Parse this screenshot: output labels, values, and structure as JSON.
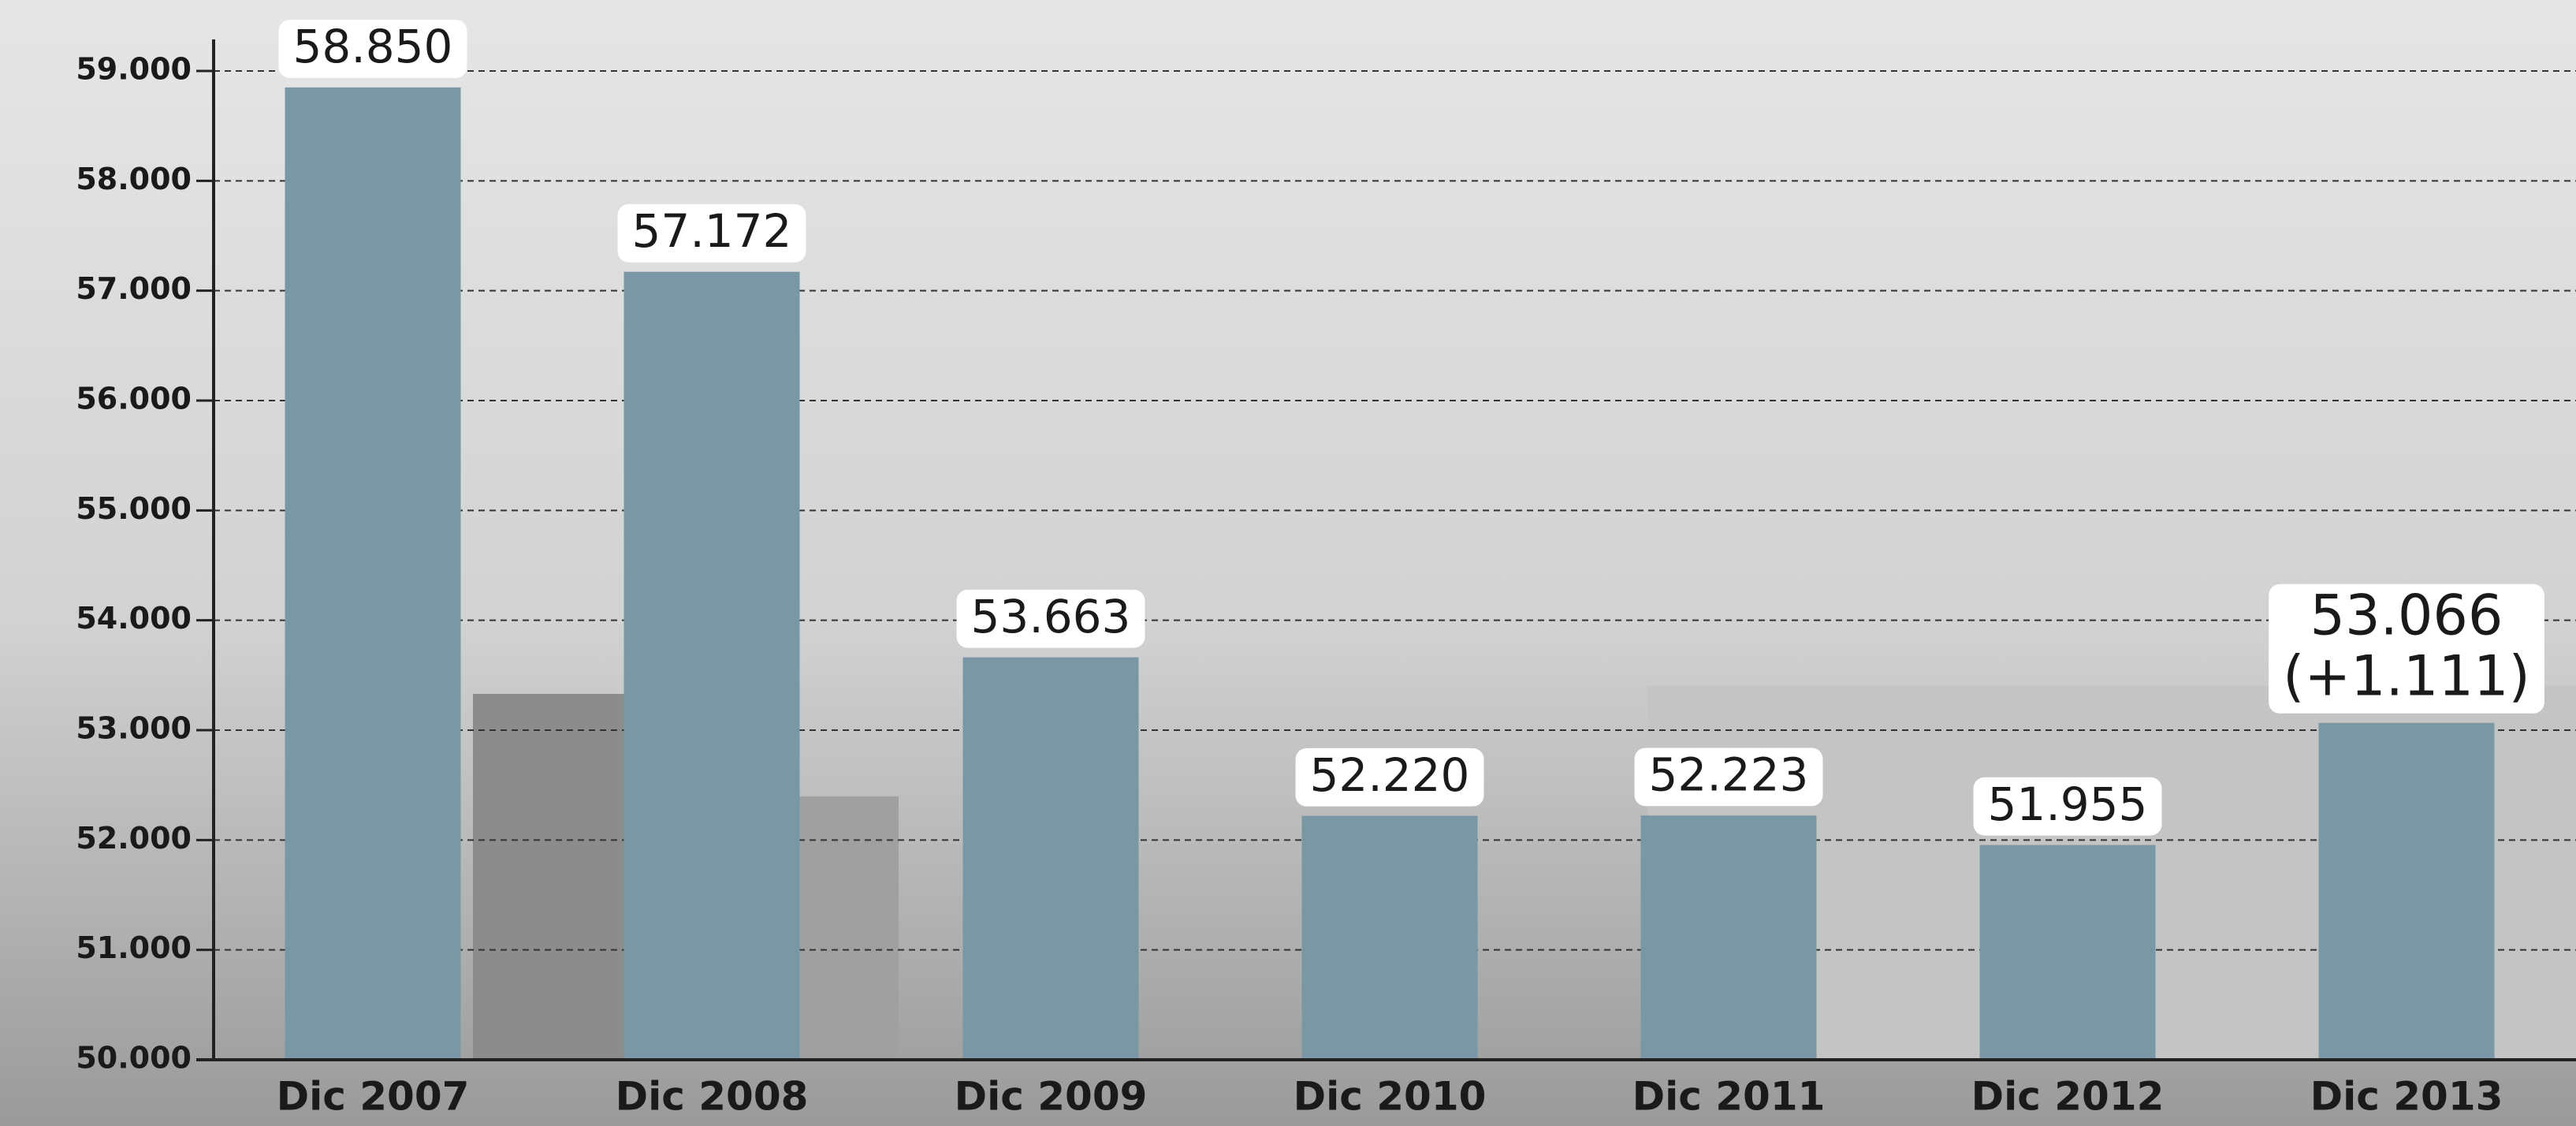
{
  "chart_data": {
    "type": "bar",
    "categories": [
      "Dic 2007",
      "Dic 2008",
      "Dic 2009",
      "Dic 2010",
      "Dic 2011",
      "Dic 2012",
      "Dic 2013"
    ],
    "values": [
      58850,
      57172,
      53663,
      52220,
      52223,
      51955,
      53066
    ],
    "value_labels": [
      "58.850",
      "57.172",
      "53.663",
      "52.220",
      "52.223",
      "51.955",
      "53.066"
    ],
    "annotation": "(+1.111)",
    "color": "#7a97a5",
    "ylim": [
      50000,
      59000
    ],
    "yticks": [
      {
        "value": 50000,
        "label": "50.000"
      },
      {
        "value": 51000,
        "label": "51.000"
      },
      {
        "value": 52000,
        "label": "52.000"
      },
      {
        "value": 53000,
        "label": "53.000"
      },
      {
        "value": 54000,
        "label": "54.000"
      },
      {
        "value": 55000,
        "label": "55.000"
      },
      {
        "value": 56000,
        "label": "56.000"
      },
      {
        "value": 57000,
        "label": "57.000"
      },
      {
        "value": 58000,
        "label": "58.000"
      },
      {
        "value": 59000,
        "label": "59.000"
      }
    ],
    "grid": true
  }
}
